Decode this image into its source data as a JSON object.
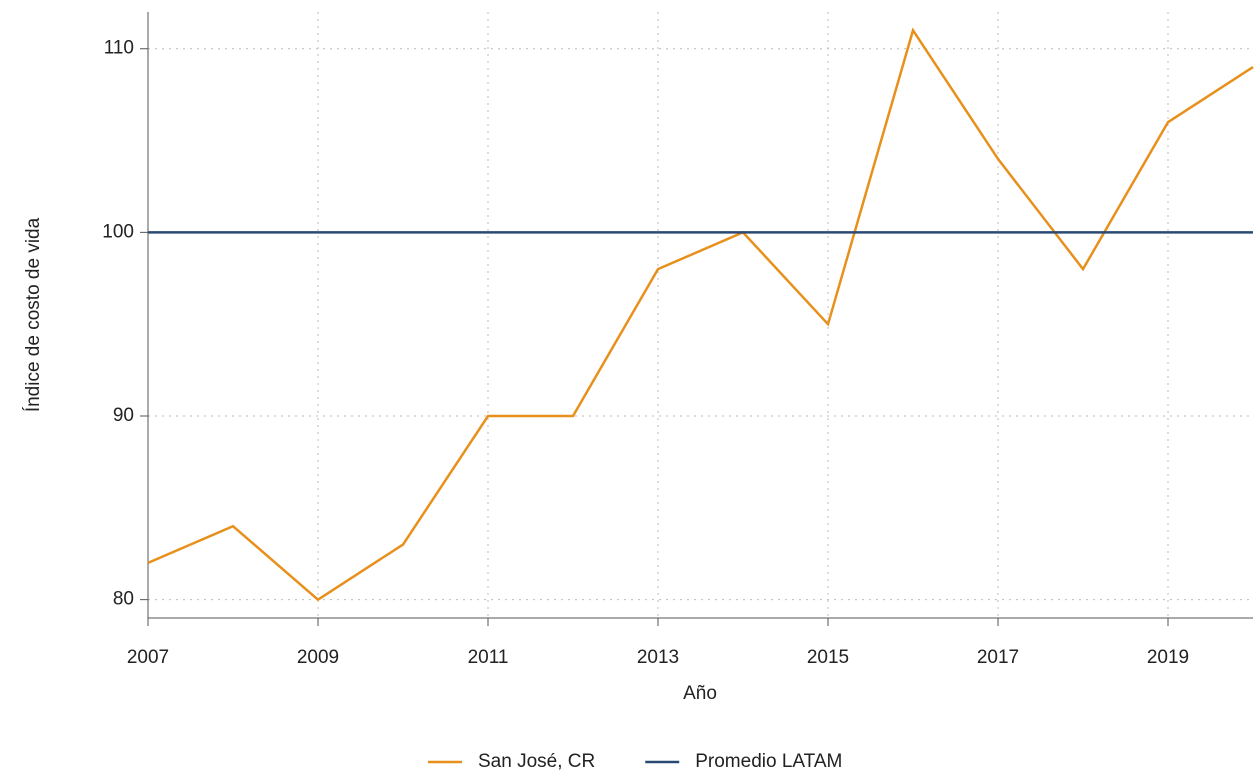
{
  "chart_data": {
    "type": "line",
    "x_label": "Año",
    "y_label": "Índice de costo de vida",
    "x": [
      2007,
      2008,
      2009,
      2010,
      2011,
      2012,
      2013,
      2014,
      2015,
      2016,
      2017,
      2018,
      2019,
      2020
    ],
    "series": [
      {
        "name": "San José, CR",
        "color": "#e8901c",
        "values": [
          82,
          84,
          80,
          83,
          90,
          90,
          98,
          100,
          95,
          111,
          104,
          98,
          106,
          109
        ]
      },
      {
        "name": "Promedio LATAM",
        "color": "#2b4a73",
        "values": [
          100,
          100,
          100,
          100,
          100,
          100,
          100,
          100,
          100,
          100,
          100,
          100,
          100,
          100
        ]
      }
    ],
    "xlim": [
      2007,
      2020
    ],
    "xticks": [
      2007,
      2009,
      2011,
      2013,
      2015,
      2017,
      2019
    ],
    "ylim": [
      79,
      112
    ],
    "yticks": [
      80,
      90,
      100,
      110
    ],
    "grid": true,
    "legend": "bottom"
  }
}
